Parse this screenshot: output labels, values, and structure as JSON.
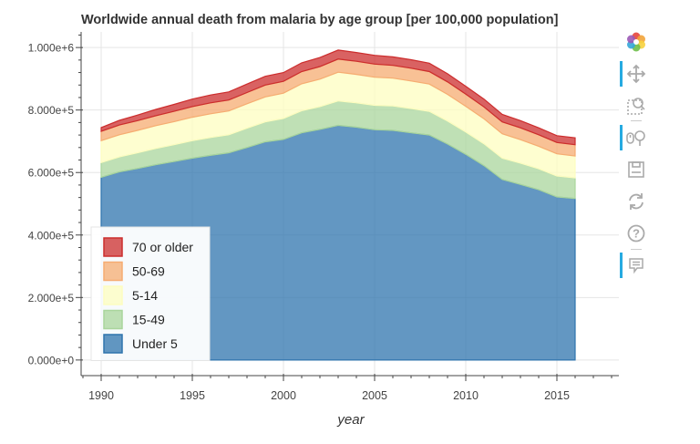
{
  "chart_data": {
    "type": "area",
    "stacked": true,
    "title": "Worldwide annual death from malaria by age group [per 100,000 population]",
    "xlabel": "year",
    "ylabel": "",
    "xlim": [
      1988.9,
      2018.4
    ],
    "ylim": [
      -50000,
      1050000
    ],
    "x_ticks": [
      1990,
      1995,
      2000,
      2005,
      2010,
      2015
    ],
    "y_ticks": [
      0,
      200000,
      400000,
      600000,
      800000,
      1000000
    ],
    "y_tick_labels": [
      "0.000e+0",
      "2.000e+5",
      "4.000e+5",
      "6.000e+5",
      "8.000e+5",
      "1.000e+6"
    ],
    "grid": true,
    "legend_position": "bottom-left",
    "x": [
      1990,
      1991,
      1992,
      1993,
      1994,
      1995,
      1996,
      1997,
      1998,
      1999,
      2000,
      2001,
      2002,
      2003,
      2004,
      2005,
      2006,
      2007,
      2008,
      2009,
      2010,
      2011,
      2012,
      2013,
      2014,
      2015,
      2016
    ],
    "series": [
      {
        "name": "Under 5",
        "color": "#2f74ad",
        "values": [
          585000,
          602000,
          613000,
          625000,
          635000,
          646000,
          655000,
          663000,
          680000,
          698000,
          706000,
          727000,
          738000,
          751000,
          745000,
          737000,
          735000,
          727000,
          720000,
          691000,
          658000,
          622000,
          578000,
          562000,
          545000,
          522000,
          517000
        ]
      },
      {
        "name": "15-49",
        "color": "#a9d59c",
        "values": [
          47000,
          48000,
          50000,
          52000,
          54000,
          56000,
          57000,
          58000,
          62000,
          64000,
          67000,
          71000,
          73000,
          78000,
          78000,
          78000,
          78000,
          78000,
          76000,
          74000,
          72000,
          70000,
          68000,
          68000,
          67000,
          67000,
          66000
        ]
      },
      {
        "name": "5-14",
        "color": "#fdfdc0",
        "values": [
          70000,
          71000,
          72000,
          73000,
          74000,
          75000,
          76000,
          76000,
          78000,
          80000,
          81000,
          86000,
          88000,
          92000,
          91000,
          90000,
          89000,
          88000,
          87000,
          85000,
          82000,
          80000,
          78000,
          75000,
          72000,
          71000,
          70000
        ]
      },
      {
        "name": "50-69",
        "color": "#f6ac72",
        "values": [
          30000,
          31000,
          31000,
          32000,
          33000,
          34000,
          35000,
          35000,
          36000,
          38000,
          38000,
          39000,
          40000,
          42000,
          42000,
          42000,
          41000,
          41000,
          40000,
          40000,
          39000,
          38000,
          38000,
          38000,
          37000,
          36000,
          36000
        ]
      },
      {
        "name": "70 or older",
        "color": "#cc2d2d",
        "values": [
          12000,
          15000,
          18000,
          20000,
          22000,
          24000,
          25000,
          26000,
          27000,
          28000,
          28000,
          28000,
          29000,
          29000,
          28000,
          28000,
          27000,
          27000,
          27000,
          26000,
          25000,
          25000,
          24000,
          23000,
          22000,
          22000,
          22000
        ]
      }
    ],
    "legend": [
      "70 or older",
      "50-69",
      "5-14",
      "15-49",
      "Under 5"
    ]
  },
  "toolbar": {
    "tools": [
      {
        "name": "bokeh-logo-icon",
        "active": false
      },
      {
        "name": "pan-tool-icon",
        "active": true
      },
      {
        "name": "box-zoom-tool-icon",
        "active": false
      },
      {
        "name": "wheel-zoom-tool-icon",
        "active": true
      },
      {
        "name": "save-tool-icon",
        "active": false
      },
      {
        "name": "reset-tool-icon",
        "active": false
      },
      {
        "name": "help-tool-icon",
        "active": false
      },
      {
        "name": "hover-tool-icon",
        "active": true
      }
    ]
  }
}
